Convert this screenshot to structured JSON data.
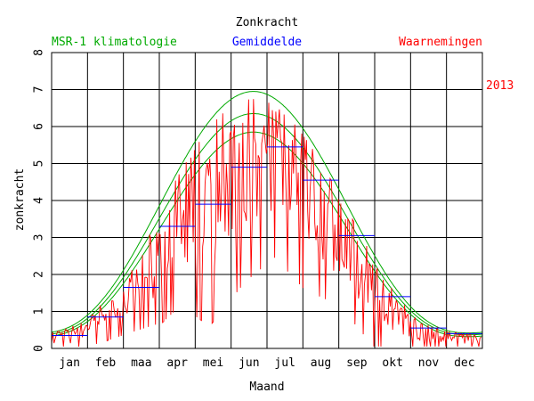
{
  "chart_data": {
    "type": "line",
    "title": "Zonkracht",
    "xlabel": "Maand",
    "ylabel": "zonkracht",
    "year_label": "2013",
    "ylim": [
      0,
      8
    ],
    "yticks": [
      "0",
      "1",
      "2",
      "3",
      "4",
      "5",
      "6",
      "7",
      "8"
    ],
    "months": [
      "jan",
      "feb",
      "maa",
      "apr",
      "mei",
      "jun",
      "jul",
      "aug",
      "sep",
      "okt",
      "nov",
      "dec"
    ],
    "grid": true,
    "colors": {
      "climatology": "#00aa00",
      "average": "#0000ff",
      "observations": "#ff0000",
      "axis": "#000000"
    },
    "legend": [
      {
        "label": "MSR-1 klimatologie",
        "color": "#00aa00"
      },
      {
        "label": "Gemiddelde",
        "color": "#0000ff"
      },
      {
        "label": "Waarnemingen",
        "color": "#ff0000"
      }
    ],
    "climatology": {
      "day_of_peak": 172,
      "winter_min": [
        0.42,
        0.37,
        0.32
      ],
      "summer_peak": [
        6.95,
        6.35,
        5.85
      ]
    },
    "monthly_average": [
      0.35,
      0.85,
      1.65,
      3.3,
      3.9,
      4.9,
      5.45,
      4.55,
      3.05,
      1.4,
      0.55,
      0.4
    ],
    "observations_profile": [
      {
        "day": 1,
        "value": 0.35,
        "spread": 0.25
      },
      {
        "day": 20,
        "value": 0.4,
        "spread": 0.3
      },
      {
        "day": 45,
        "value": 0.85,
        "spread": 0.45
      },
      {
        "day": 75,
        "value": 1.7,
        "spread": 0.8
      },
      {
        "day": 95,
        "value": 2.8,
        "spread": 1.4
      },
      {
        "day": 110,
        "value": 4.0,
        "spread": 1.9
      },
      {
        "day": 135,
        "value": 4.2,
        "spread": 2.4
      },
      {
        "day": 165,
        "value": 5.1,
        "spread": 2.2
      },
      {
        "day": 190,
        "value": 5.6,
        "spread": 2.1
      },
      {
        "day": 215,
        "value": 4.6,
        "spread": 2.0
      },
      {
        "day": 245,
        "value": 3.1,
        "spread": 1.3
      },
      {
        "day": 275,
        "value": 1.5,
        "spread": 1.0
      },
      {
        "day": 305,
        "value": 0.6,
        "spread": 0.4
      },
      {
        "day": 335,
        "value": 0.4,
        "spread": 0.3
      },
      {
        "day": 365,
        "value": 0.35,
        "spread": 0.25
      }
    ]
  }
}
